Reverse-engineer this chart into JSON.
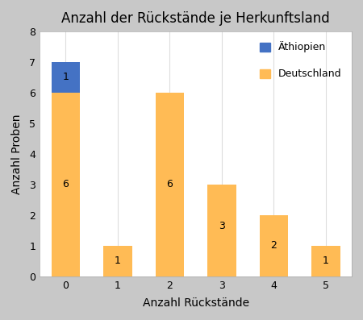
{
  "title": "Anzahl der Rückstände je Herkunftsland",
  "xlabel": "Anzahl Rückstände",
  "ylabel": "Anzahl Proben",
  "categories": [
    0,
    1,
    2,
    3,
    4,
    5
  ],
  "deutschland_values": [
    6,
    1,
    6,
    3,
    2,
    1
  ],
  "aethiopien_values": [
    1,
    0,
    0,
    0,
    0,
    0
  ],
  "deutschland_color": "#FFBB55",
  "aethiopien_color": "#4472C4",
  "ylim": [
    0,
    8
  ],
  "yticks": [
    0,
    1,
    2,
    3,
    4,
    5,
    6,
    7,
    8
  ],
  "bar_width": 0.55,
  "background_color": "#C8C8C8",
  "plot_background": "#FFFFFF",
  "legend_labels": [
    "Äthiopien",
    "Deutschland"
  ],
  "title_fontsize": 12,
  "axis_fontsize": 10,
  "tick_fontsize": 9,
  "label_fontsize": 9,
  "grid_color": "#DDDDDD"
}
